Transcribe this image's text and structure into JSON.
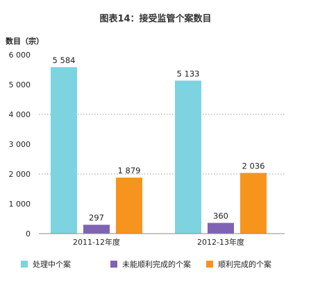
{
  "chart_data": {
    "type": "bar",
    "title": "图表14：接受监管个案数目",
    "ylabel": "数目（宗）",
    "xlabel": "",
    "ylim": [
      0,
      6000
    ],
    "yticks": [
      0,
      1000,
      2000,
      3000,
      4000,
      5000,
      6000
    ],
    "ytick_labels": [
      "0",
      "1 000",
      "2 000",
      "3 000",
      "4 000",
      "5 000",
      "6 000"
    ],
    "grid": "dotted horizontal lines at 2 000 and 4 000",
    "legend_position": "bottom",
    "categories": [
      "2011-12年度",
      "2012-13年度"
    ],
    "series": [
      {
        "name": "处理中个案",
        "color": "#7dd3e0",
        "values": [
          5584,
          5133
        ],
        "labels": [
          "5 584",
          "5 133"
        ]
      },
      {
        "name": "未能顺利完成的个案",
        "color": "#8062b5",
        "values": [
          297,
          360
        ],
        "labels": [
          "297",
          "360"
        ]
      },
      {
        "name": "顺利完成的个案",
        "color": "#f7941d",
        "values": [
          1879,
          2036
        ],
        "labels": [
          "1 879",
          "2 036"
        ]
      }
    ]
  }
}
